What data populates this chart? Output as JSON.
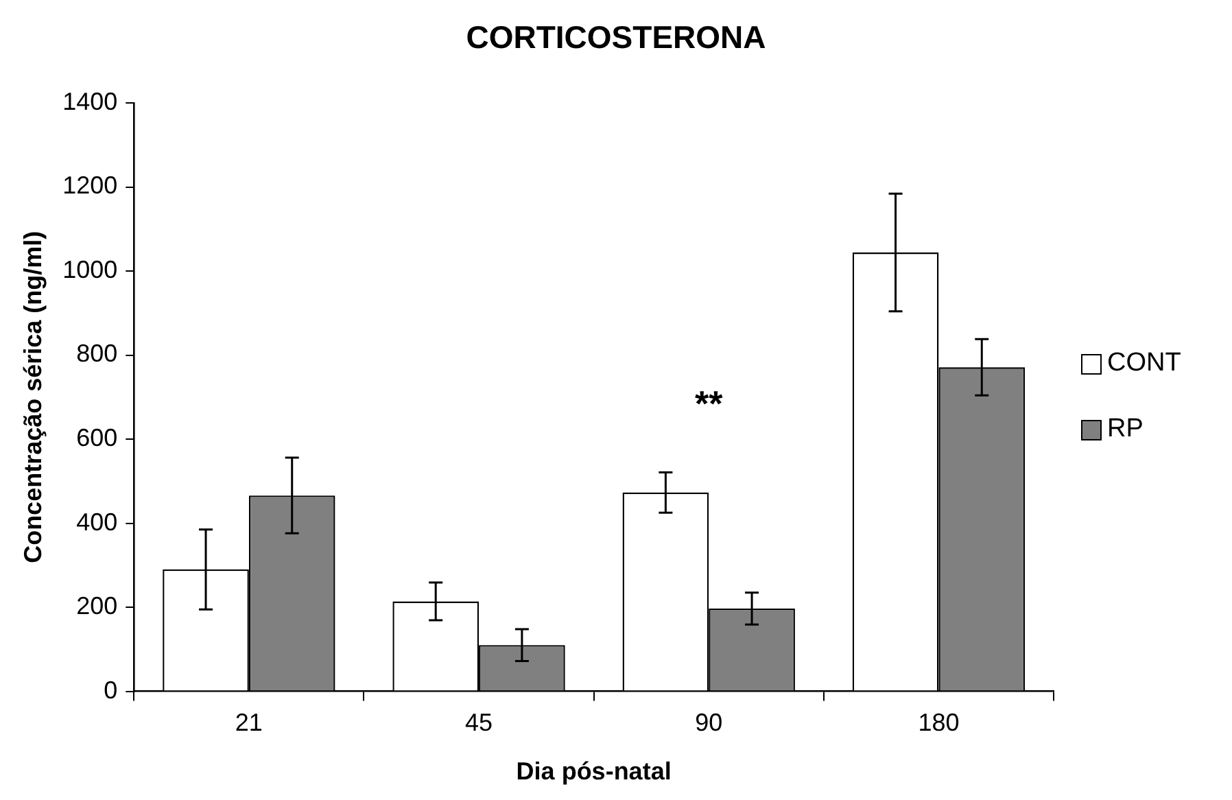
{
  "chart_data": {
    "type": "bar",
    "title": "CORTICOSTERONA",
    "xlabel": "Dia pós-natal",
    "ylabel": "Concentração sérica (ng/ml)",
    "categories": [
      "21",
      "45",
      "90",
      "180"
    ],
    "series": [
      {
        "name": "CONT",
        "color": "#ffffff",
        "values": [
          290,
          214,
          473,
          1044
        ],
        "errors": [
          95,
          45,
          48,
          140
        ]
      },
      {
        "name": "RP",
        "color": "#808080",
        "values": [
          466,
          110,
          197,
          771
        ],
        "errors": [
          90,
          38,
          38,
          67
        ]
      }
    ],
    "ylim": [
      0,
      1400
    ],
    "yticks": [
      0,
      200,
      400,
      600,
      800,
      1000,
      1200,
      1400
    ],
    "grid": false,
    "legend": "right",
    "annotations": [
      "**"
    ]
  }
}
